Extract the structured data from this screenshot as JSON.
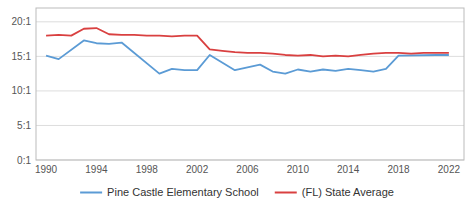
{
  "chart_data": {
    "type": "line",
    "series": [
      {
        "name": "Pine Castle Elementary School",
        "color": "#5b9bd5",
        "x": [
          1990,
          1991,
          1993,
          1994,
          1995,
          1996,
          1999,
          2000,
          2001,
          2002,
          2003,
          2005,
          2007,
          2008,
          2009,
          2010,
          2011,
          2012,
          2013,
          2014,
          2015,
          2016,
          2017,
          2018,
          2021,
          2022
        ],
        "values": [
          15.1,
          14.6,
          17.3,
          16.9,
          16.8,
          17.0,
          12.5,
          13.2,
          13.0,
          13.0,
          15.2,
          13.0,
          13.8,
          12.8,
          12.5,
          13.1,
          12.8,
          13.1,
          12.9,
          13.2,
          13.0,
          12.8,
          13.2,
          15.1,
          15.2,
          15.2
        ]
      },
      {
        "name": "(FL) State Average",
        "color": "#d94040",
        "x": [
          1990,
          1991,
          1992,
          1993,
          1994,
          1995,
          1996,
          1997,
          1998,
          1999,
          2000,
          2001,
          2002,
          2003,
          2004,
          2005,
          2006,
          2007,
          2008,
          2009,
          2010,
          2011,
          2012,
          2013,
          2014,
          2015,
          2016,
          2017,
          2018,
          2019,
          2020,
          2021,
          2022
        ],
        "values": [
          18.0,
          18.1,
          18.0,
          19.0,
          19.1,
          18.2,
          18.1,
          18.1,
          18.0,
          18.0,
          17.9,
          18.0,
          18.0,
          16.0,
          15.8,
          15.6,
          15.5,
          15.5,
          15.4,
          15.2,
          15.1,
          15.2,
          15.0,
          15.1,
          15.0,
          15.2,
          15.4,
          15.5,
          15.5,
          15.4,
          15.5,
          15.5,
          15.5
        ]
      }
    ],
    "xlim": [
      1989.2,
      2023.2
    ],
    "ylim": [
      0,
      22
    ],
    "xticks": [
      1990,
      1994,
      1998,
      2002,
      2006,
      2010,
      2014,
      2018,
      2022
    ],
    "yticks": [
      {
        "value": 0,
        "label": "0:1"
      },
      {
        "value": 5,
        "label": "5:1"
      },
      {
        "value": 10,
        "label": "10:1"
      },
      {
        "value": 15,
        "label": "15:1"
      },
      {
        "value": 20,
        "label": "20:1"
      }
    ],
    "grid": "y",
    "legend": "bottom"
  }
}
